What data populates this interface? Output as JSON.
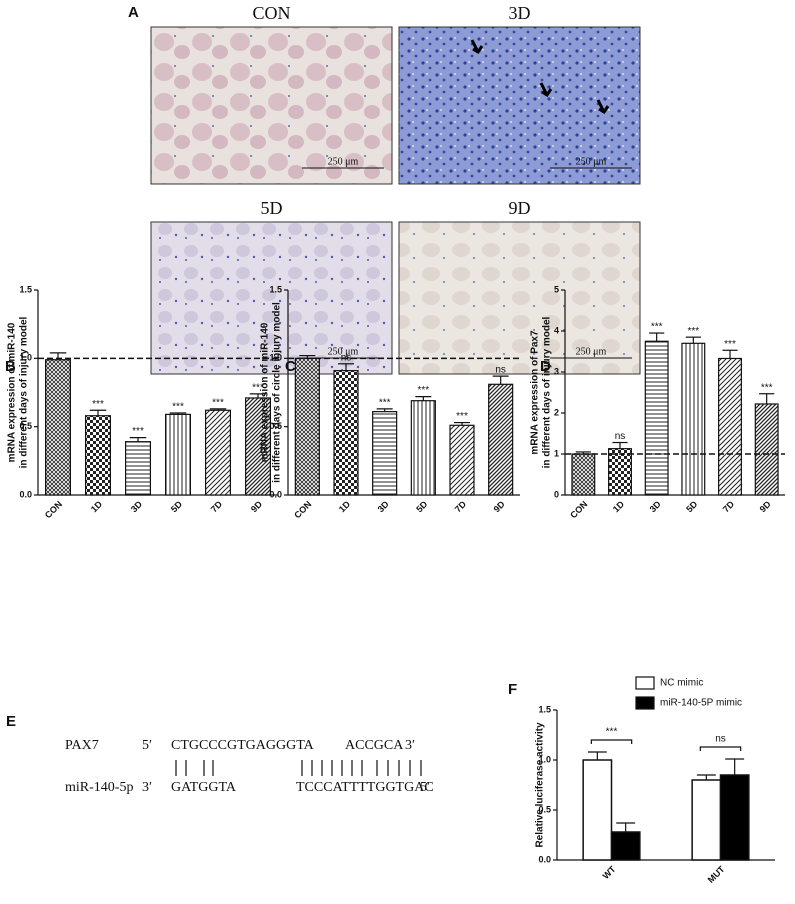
{
  "panel_a": {
    "label": "A",
    "images": [
      {
        "title": "CON",
        "scale_bar": "250 μm"
      },
      {
        "title": "3D",
        "scale_bar": "250 μm"
      },
      {
        "title": "5D",
        "scale_bar": "250 μm"
      },
      {
        "title": "9D",
        "scale_bar": "250 μm"
      }
    ]
  },
  "panel_e": {
    "label": "E",
    "rows": [
      {
        "name": "PAX7",
        "parts": [
          "5′",
          "CTGCCCGTGAGGGTA",
          "ACCGCA",
          "3′"
        ]
      },
      {
        "name": "miR-140-5p",
        "parts": [
          "3′",
          "GATGGTA",
          "TCCCATTTTGGTGAC",
          "5′"
        ]
      }
    ]
  },
  "chart_data": [
    {
      "type": "bar",
      "panel": "B",
      "ylabel": [
        "mRNA expression of miR-140",
        "in different days of injury model"
      ],
      "categories": [
        "CON",
        "1D",
        "3D",
        "5D",
        "7D",
        "9D"
      ],
      "values": [
        0.99,
        0.58,
        0.39,
        0.59,
        0.62,
        0.71
      ],
      "errors": [
        0.05,
        0.04,
        0.03,
        0.01,
        0.01,
        0.03
      ],
      "annotations": [
        null,
        "***",
        "***",
        "***",
        "***",
        "***"
      ],
      "ref_line": 1,
      "ylim": [
        0,
        1.5
      ],
      "yticks": [
        {
          "value": 0,
          "label": "0.0"
        },
        0.5,
        {
          "value": 1,
          "label": "1.0"
        },
        {
          "value": 1.5,
          "label": "1.5"
        }
      ]
    },
    {
      "type": "bar",
      "panel": "C",
      "ylabel": [
        "mRNA expression of miR-140",
        "in different days of circle injury model"
      ],
      "categories": [
        "CON",
        "1D",
        "3D",
        "5D",
        "7D",
        "9D"
      ],
      "values": [
        1.0,
        0.91,
        0.61,
        0.69,
        0.51,
        0.81
      ],
      "errors": [
        0.02,
        0.05,
        0.02,
        0.03,
        0.02,
        0.06
      ],
      "annotations": [
        null,
        "ns",
        "***",
        "***",
        "***",
        "ns"
      ],
      "ref_line": 1,
      "ylim": [
        0,
        1.5
      ],
      "yticks": [
        {
          "value": 0,
          "label": "0.0"
        },
        0.5,
        {
          "value": 1,
          "label": "1.0"
        },
        {
          "value": 1.5,
          "label": "1.5"
        }
      ]
    },
    {
      "type": "bar",
      "panel": "D",
      "ylabel": [
        "mRNA expression of Pax7",
        "in different days of injury model"
      ],
      "categories": [
        "CON",
        "1D",
        "3D",
        "5D",
        "7D",
        "9D"
      ],
      "values": [
        1.0,
        1.13,
        3.75,
        3.7,
        3.33,
        2.22
      ],
      "errors": [
        0.05,
        0.15,
        0.2,
        0.15,
        0.2,
        0.25
      ],
      "annotations": [
        null,
        "ns",
        "***",
        "***",
        "***",
        "***"
      ],
      "ref_line": 1,
      "ylim": [
        0,
        5
      ],
      "yticks": [
        0,
        1,
        2,
        3,
        4,
        5
      ]
    },
    {
      "type": "grouped_bar",
      "panel": "F",
      "ylabel": [
        "Relative luciferase activity"
      ],
      "categories": [
        "WT",
        "MUT"
      ],
      "series": [
        {
          "name": "NC mimic",
          "color": "#ffffff",
          "values": [
            1.0,
            0.8
          ],
          "errors": [
            0.08,
            0.05
          ]
        },
        {
          "name": "miR-140-5P mimic",
          "color": "#000000",
          "values": [
            0.28,
            0.85
          ],
          "errors": [
            0.09,
            0.16
          ]
        }
      ],
      "annotations": [
        "***",
        "ns"
      ],
      "ylim": [
        0,
        1.5
      ],
      "yticks": [
        {
          "value": 0,
          "label": "0.0"
        },
        0.5,
        {
          "value": 1,
          "label": "1.0"
        },
        {
          "value": 1.5,
          "label": "1.5"
        }
      ]
    }
  ]
}
